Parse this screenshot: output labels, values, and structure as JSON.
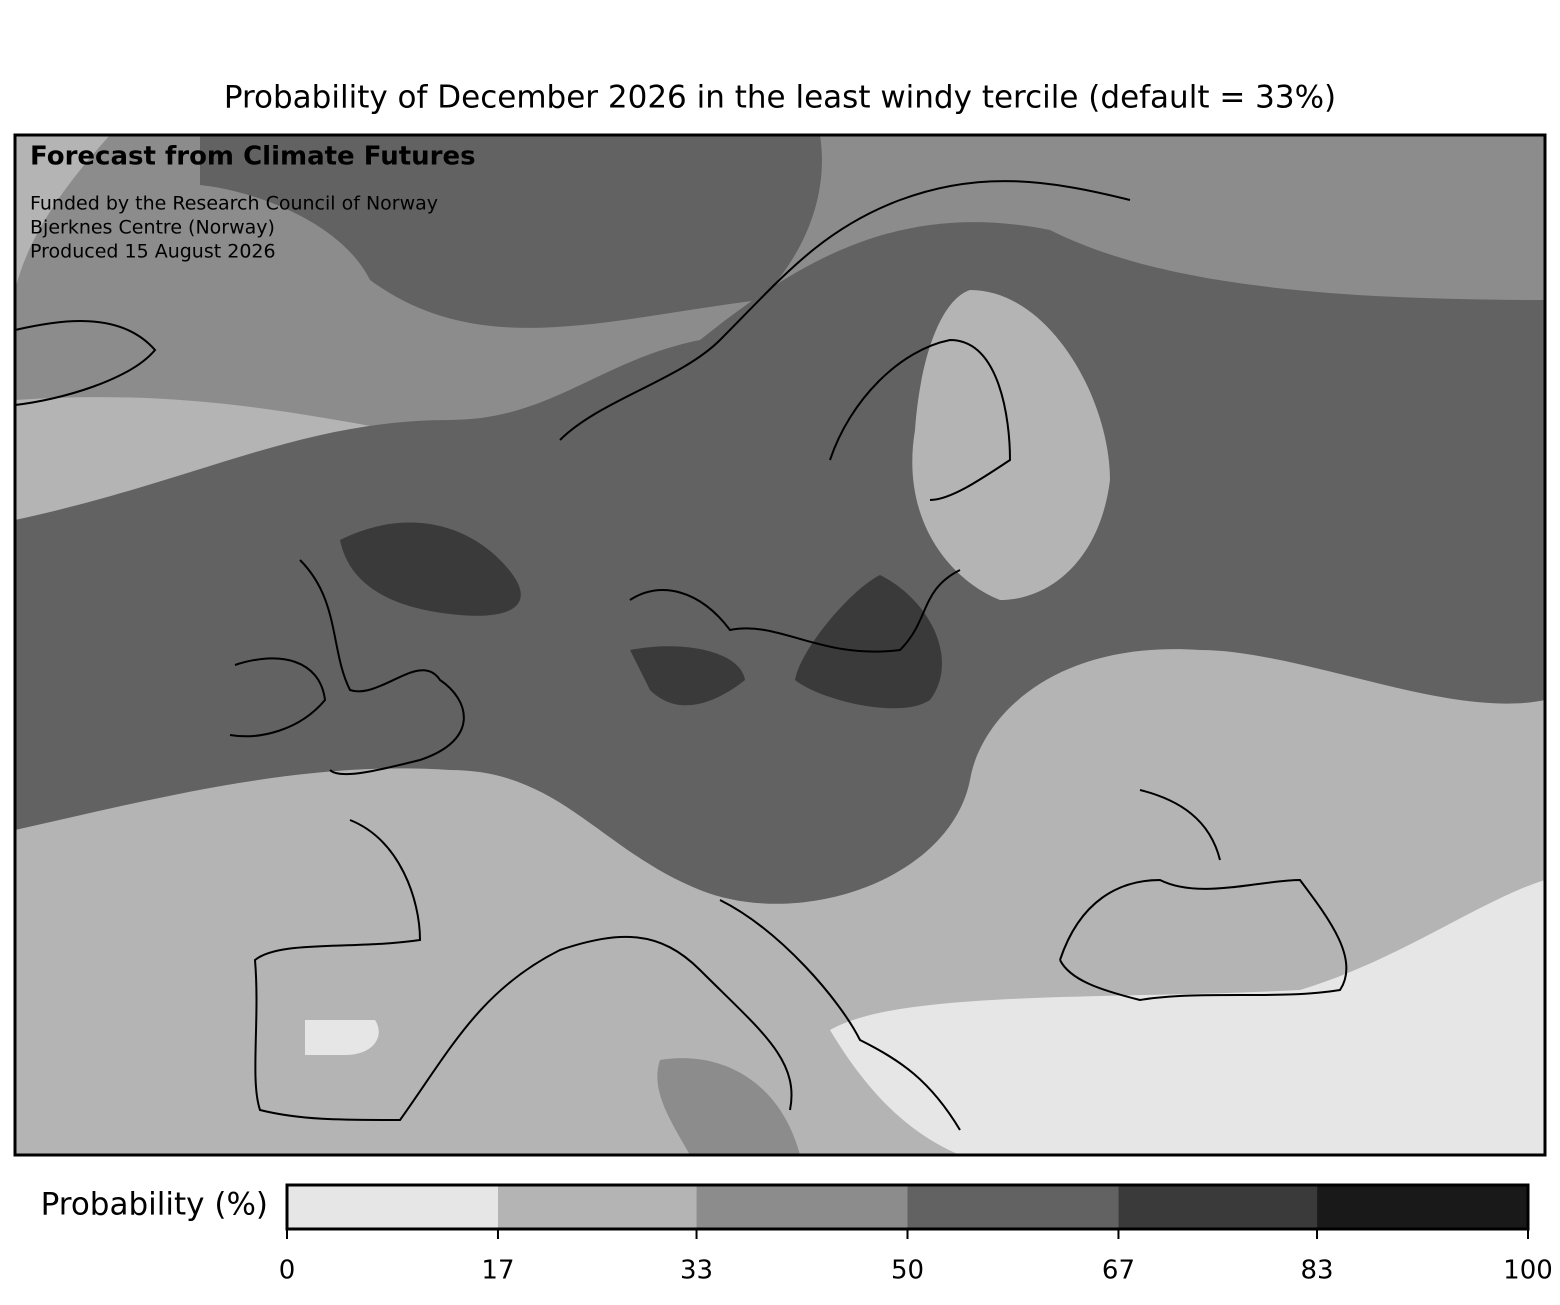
{
  "title": "Probability of December 2026 in the least windy tercile (default = 33%)",
  "annotations": {
    "heading": "Forecast from Climate Futures",
    "lines": [
      "Funded by the Research Council of Norway",
      "Bjerknes Centre (Norway)",
      "Produced 15 August 2026"
    ]
  },
  "colorbar": {
    "label": "Probability (%)",
    "lim": [
      0,
      100
    ],
    "bounds": [
      0,
      17,
      33,
      50,
      67,
      83,
      100
    ],
    "colors": [
      "#e6e6e6",
      "#b4b4b4",
      "#8c8c8c",
      "#626262",
      "#3a3a3a",
      "#191919"
    ],
    "ticks": [
      0,
      17,
      33,
      50,
      67,
      83,
      100
    ]
  }
}
